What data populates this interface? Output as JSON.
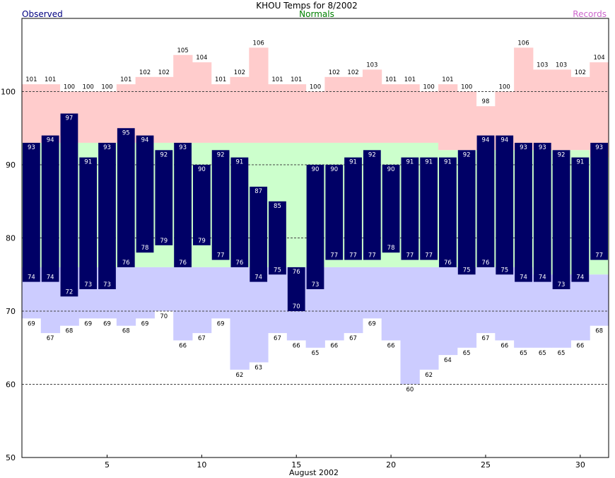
{
  "chart_data": {
    "type": "bar",
    "title": "KHOU Temps for 8/2002",
    "xlabel": "August 2002",
    "ylabel": "",
    "ylim": [
      50,
      110
    ],
    "yticks": [
      50,
      60,
      70,
      80,
      90,
      100
    ],
    "xticks": [
      5,
      10,
      15,
      20,
      25,
      30
    ],
    "grid": true,
    "legend": {
      "observed": "Observed",
      "normals": "Normals",
      "records": "Records"
    },
    "colors": {
      "observed": "#000066",
      "normals": "#ccffcc",
      "record_high": "#ffcccc",
      "record_low": "#ccccff",
      "observed_legend": "#000080",
      "normals_legend": "#008000",
      "records_legend": "#cc66cc"
    },
    "days": [
      1,
      2,
      3,
      4,
      5,
      6,
      7,
      8,
      9,
      10,
      11,
      12,
      13,
      14,
      15,
      16,
      17,
      18,
      19,
      20,
      21,
      22,
      23,
      24,
      25,
      26,
      27,
      28,
      29,
      30,
      31
    ],
    "series": [
      {
        "name": "Record High",
        "values": [
          101,
          101,
          100,
          100,
          100,
          101,
          102,
          102,
          105,
          104,
          101,
          102,
          106,
          101,
          101,
          100,
          102,
          102,
          103,
          101,
          101,
          100,
          101,
          100,
          98,
          100,
          106,
          103,
          103,
          102,
          104
        ]
      },
      {
        "name": "Record Low",
        "values": [
          69,
          67,
          68,
          69,
          69,
          68,
          69,
          70,
          66,
          67,
          69,
          62,
          63,
          67,
          66,
          65,
          66,
          67,
          69,
          66,
          60,
          62,
          64,
          65,
          67,
          66,
          65,
          65,
          65,
          66,
          68
        ]
      },
      {
        "name": "Normal High",
        "values": [
          93,
          93,
          93,
          93,
          93,
          93,
          93,
          93,
          93,
          93,
          93,
          93,
          93,
          93,
          93,
          93,
          93,
          93,
          93,
          93,
          93,
          93,
          92,
          92,
          92,
          92,
          92,
          92,
          92,
          92,
          91
        ]
      },
      {
        "name": "Normal Low",
        "values": [
          76,
          76,
          76,
          76,
          76,
          76,
          76,
          76,
          76,
          76,
          76,
          76,
          76,
          76,
          76,
          76,
          76,
          76,
          76,
          76,
          76,
          76,
          76,
          76,
          76,
          76,
          76,
          75,
          75,
          75,
          75
        ]
      },
      {
        "name": "Observed High",
        "values": [
          93,
          94,
          97,
          91,
          93,
          95,
          94,
          92,
          93,
          90,
          92,
          91,
          87,
          85,
          76,
          90,
          90,
          91,
          92,
          90,
          91,
          91,
          91,
          92,
          94,
          94,
          93,
          93,
          92,
          91,
          93
        ]
      },
      {
        "name": "Observed Low",
        "values": [
          74,
          74,
          72,
          73,
          73,
          76,
          78,
          79,
          76,
          79,
          77,
          76,
          74,
          75,
          70,
          73,
          77,
          77,
          77,
          78,
          77,
          77,
          76,
          75,
          76,
          75,
          74,
          74,
          73,
          74,
          77
        ]
      }
    ]
  }
}
